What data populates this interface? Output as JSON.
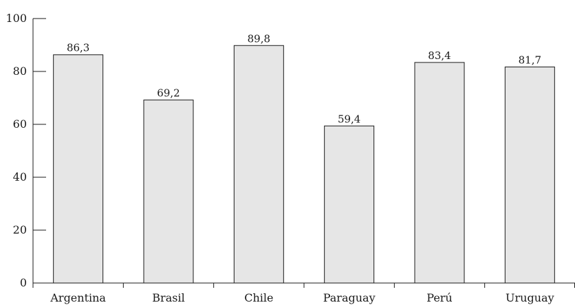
{
  "chart_data": {
    "type": "bar",
    "categories": [
      "Argentina",
      "Brasil",
      "Chile",
      "Paraguay",
      "Perú",
      "Uruguay"
    ],
    "values": [
      86.3,
      69.2,
      89.8,
      59.4,
      83.4,
      81.7
    ],
    "value_labels": [
      "86,3",
      "69,2",
      "89,8",
      "59,4",
      "83,4",
      "81,7"
    ],
    "title": "",
    "xlabel": "",
    "ylabel": "",
    "ylim": [
      0,
      100
    ],
    "yticks": [
      0,
      20,
      40,
      60,
      80,
      100
    ],
    "grid": false,
    "legend": "none",
    "bar_color": "#e6e6e6",
    "edge_color": "#1a1a1a"
  }
}
